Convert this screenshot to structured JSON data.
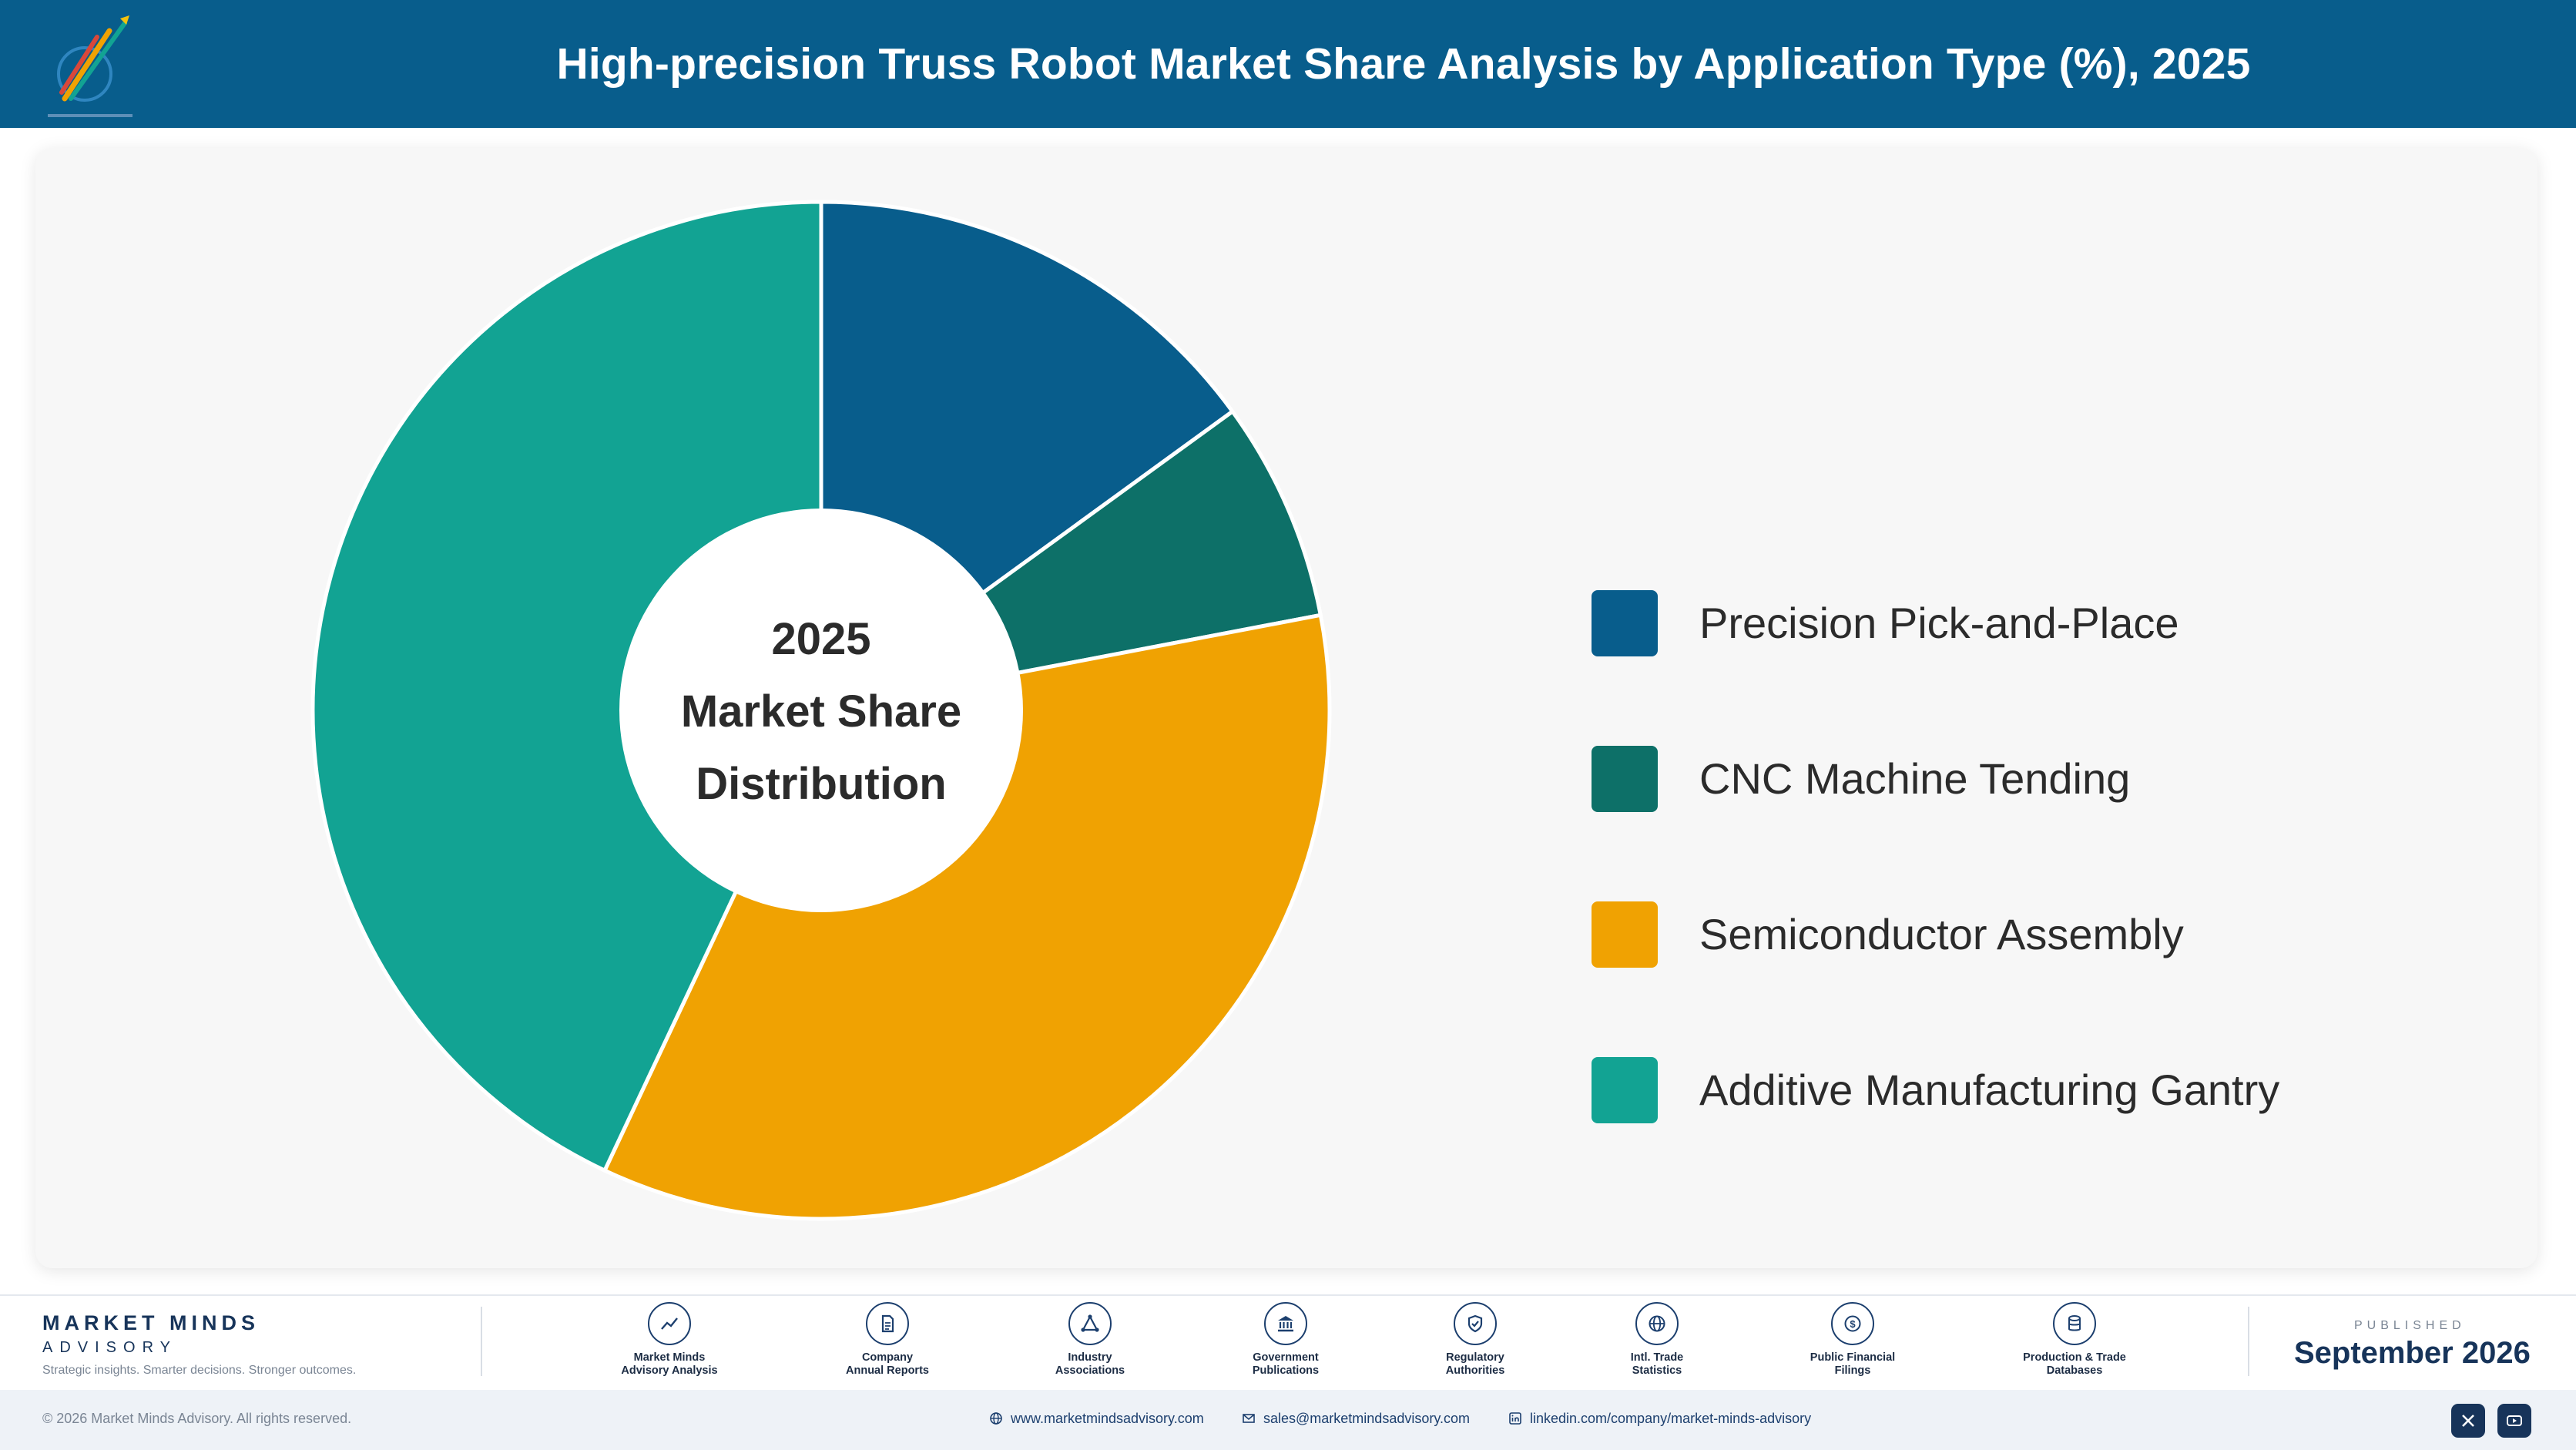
{
  "header": {
    "title": "High-precision Truss Robot Market Share Analysis by Application Type (%), 2025"
  },
  "chart_data": {
    "type": "pie",
    "title": "High-precision Truss Robot Market Share Analysis by Application Type (%), 2025",
    "center_label": [
      "2025",
      "Market Share",
      "Distribution"
    ],
    "categories": [
      "Precision Pick-and-Place",
      "CNC Machine Tending",
      "Semiconductor Assembly",
      "Additive Manufacturing Gantry"
    ],
    "values": [
      15,
      7,
      35,
      43
    ],
    "unit": "%",
    "colors": [
      "#085d8c",
      "#0d7068",
      "#f0a202",
      "#12a393"
    ],
    "legend_position": "right",
    "donut": true
  },
  "footer": {
    "brand_name": "MARKET MINDS",
    "brand_sub": "ADVISORY",
    "tagline": "Strategic insights. Smarter decisions. Stronger outcomes.",
    "sources": [
      {
        "line1": "Market Minds",
        "line2": "Advisory Analysis",
        "icon": "chart-line-icon"
      },
      {
        "line1": "Company",
        "line2": "Annual Reports",
        "icon": "document-icon"
      },
      {
        "line1": "Industry",
        "line2": "Associations",
        "icon": "network-icon"
      },
      {
        "line1": "Government",
        "line2": "Publications",
        "icon": "government-building-icon"
      },
      {
        "line1": "Regulatory",
        "line2": "Authorities",
        "icon": "shield-check-icon"
      },
      {
        "line1": "Intl. Trade",
        "line2": "Statistics",
        "icon": "globe-icon"
      },
      {
        "line1": "Public Financial",
        "line2": "Filings",
        "icon": "dollar-coin-icon"
      },
      {
        "line1": "Production & Trade",
        "line2": "Databases",
        "icon": "database-icon"
      }
    ],
    "published_label": "PUBLISHED",
    "published_date": "September 2026"
  },
  "bottom_bar": {
    "copyright": "© 2026 Market Minds Advisory. All rights reserved.",
    "website": "www.marketmindsadvisory.com",
    "email": "sales@marketmindsadvisory.com",
    "linkedin": "linkedin.com/company/market-minds-advisory",
    "social": [
      "x-icon",
      "youtube-icon"
    ]
  }
}
